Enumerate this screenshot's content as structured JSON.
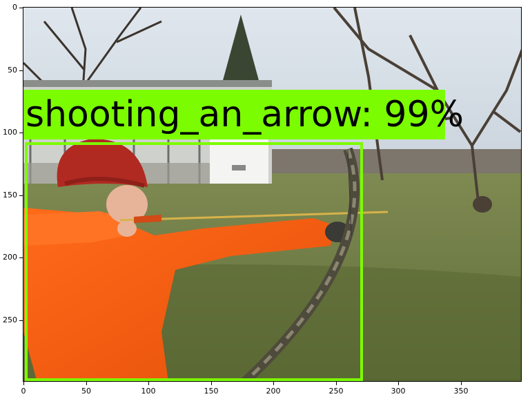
{
  "image": {
    "description_label": "photo",
    "detection": {
      "label": "shooting_an_arrow: 99%",
      "box_color": "#7cfc00"
    }
  },
  "axes": {
    "x_ticks": [
      "0",
      "50",
      "100",
      "150",
      "200",
      "250",
      "300",
      "350"
    ],
    "y_ticks": [
      "0",
      "50",
      "100",
      "150",
      "200",
      "250"
    ]
  }
}
